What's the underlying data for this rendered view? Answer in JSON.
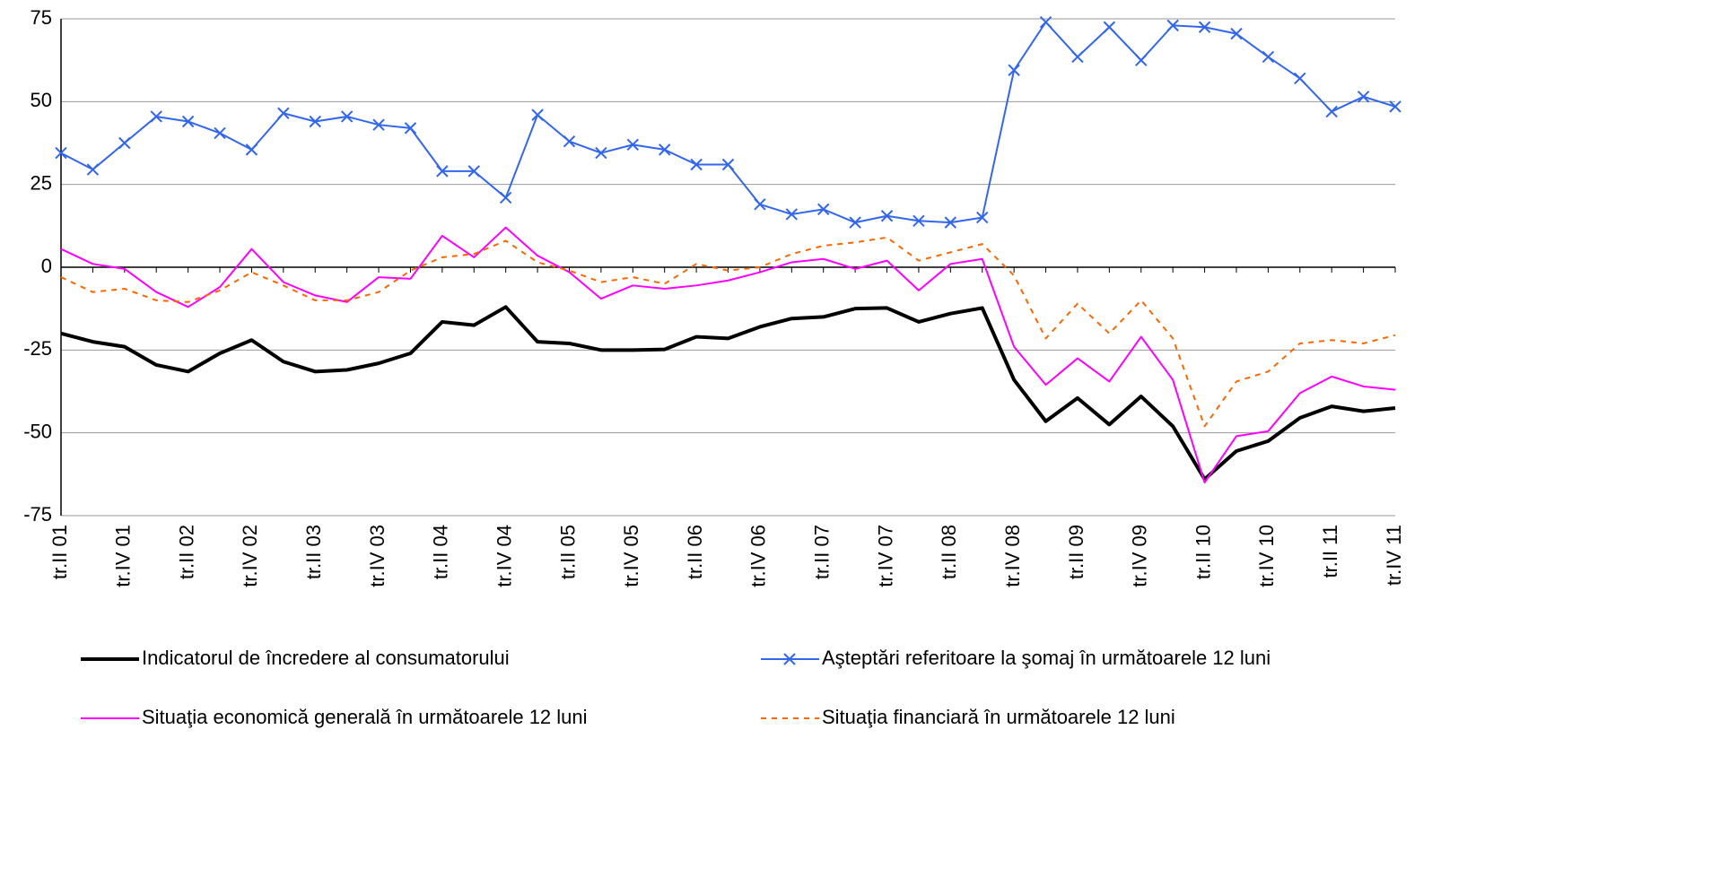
{
  "chart_data": {
    "type": "line",
    "categories": [
      "tr.II 01",
      null,
      "tr.IV 01",
      null,
      "tr.II 02",
      null,
      "tr.IV 02",
      null,
      "tr.II 03",
      null,
      "tr.IV 03",
      null,
      "tr.II 04",
      null,
      "tr.IV 04",
      null,
      "tr.II 05",
      null,
      "tr.IV 05",
      null,
      "tr.II 06",
      null,
      "tr.IV 06",
      null,
      "tr.II 07",
      null,
      "tr.IV 07",
      null,
      "tr.II 08",
      null,
      "tr.IV 08",
      null,
      "tr.II 09",
      null,
      "tr.IV 09",
      null,
      "tr.II 10",
      null,
      "tr.IV 10",
      null,
      "tr.II 11",
      null,
      "tr.IV 11"
    ],
    "series": [
      {
        "name": "Indicatorul de încredere al consumatorului",
        "color": "#000000",
        "line_width": 4,
        "line_style": "solid",
        "values": [
          -20,
          -22.5,
          -24,
          -29.5,
          -31.5,
          -26,
          -22,
          -28.5,
          -31.5,
          -31,
          -29,
          -26,
          -16.5,
          -17.5,
          -12,
          -22.5,
          -23,
          -25,
          -25,
          -24.8,
          -21,
          -21.5,
          -18,
          -15.5,
          -15,
          -12.5,
          -12.3,
          -16.5,
          -14,
          -12.3,
          -34,
          -46.5,
          -39.5,
          -47.5,
          -39,
          -48,
          -64,
          -55.5,
          -52.5,
          -45.5,
          -42,
          -43.5,
          -42.5
        ]
      },
      {
        "name": "Aşteptări referitoare la şomaj în următoarele 12 luni",
        "color": "#3366ee",
        "line_width": 2,
        "line_style": "solid",
        "marker": "x",
        "values": [
          34.5,
          29.5,
          37.5,
          45.5,
          44,
          40.5,
          35.5,
          46.5,
          44,
          45.5,
          43,
          42,
          29,
          29,
          21,
          46,
          38,
          34.5,
          37,
          35.5,
          31,
          31,
          19,
          16,
          17.5,
          13.5,
          15.5,
          14,
          13.5,
          15,
          59.5,
          74,
          63.5,
          72.5,
          62.5,
          73,
          72.5,
          70.5,
          63.5,
          57,
          47,
          51.5,
          48.5
        ]
      },
      {
        "name": "Situaţia economică generală în următoarele 12 luni",
        "color": "#ff00ff",
        "line_width": 2,
        "line_style": "solid",
        "values": [
          5.5,
          1,
          -0.5,
          -7.5,
          -12,
          -6,
          5.5,
          -4.5,
          -8.5,
          -10.5,
          -3,
          -3.5,
          9.5,
          3,
          12,
          3.5,
          -1.5,
          -9.5,
          -5.5,
          -6.5,
          -5.5,
          -4,
          -1.5,
          1.5,
          2.5,
          -0.5,
          2,
          -7,
          1,
          2.5,
          -24,
          -35.5,
          -27.5,
          -34.5,
          -21,
          -34,
          -65,
          -51,
          -49.5,
          -38,
          -33,
          -36,
          -37
        ]
      },
      {
        "name": "Situaţia financiară în următoarele 12 luni",
        "color": "#ff6600",
        "line_width": 2,
        "line_style": "dashed",
        "values": [
          -3,
          -7.5,
          -6.5,
          -10,
          -10.5,
          -7,
          -1.5,
          -5.5,
          -10,
          -10,
          -7.5,
          -1,
          3,
          4,
          8,
          1.5,
          -1,
          -4.5,
          -3,
          -5,
          1,
          -1,
          0,
          4,
          6.5,
          7.5,
          9,
          2,
          4.5,
          7,
          -2.5,
          -21.5,
          -11,
          -20,
          -10,
          -21.5,
          -48,
          -34.5,
          -31.5,
          -23,
          -22,
          -23,
          -20.5
        ]
      }
    ],
    "ylim": [
      -75,
      75
    ],
    "yticks": [
      75,
      50,
      25,
      0,
      -25,
      -50,
      -75
    ],
    "grid": true,
    "legend": "bottom"
  }
}
